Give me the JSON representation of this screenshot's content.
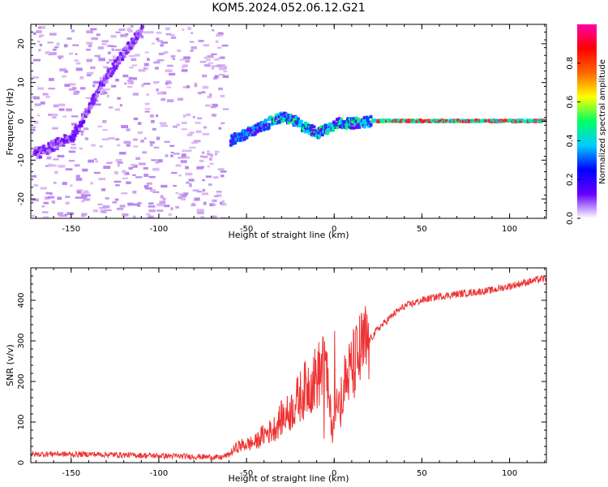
{
  "title": "KOM5.2024.052.06.12.G21",
  "chart_data": [
    {
      "type": "heatmap",
      "xlabel": "Height of straight line (km)",
      "ylabel": "Frequency (Hz)",
      "xlim": [
        -173,
        121
      ],
      "ylim": [
        -25,
        25
      ],
      "xticks": [
        -150,
        -100,
        -50,
        0,
        50,
        100
      ],
      "xtick_labels": [
        "-150",
        "-100",
        "-50",
        "0",
        "50",
        "100"
      ],
      "yticks": [
        -20,
        -10,
        0,
        10,
        20
      ],
      "ytick_labels": [
        "-20",
        "-10",
        "0",
        "10",
        "20"
      ],
      "colorbar": {
        "label": "Normalized spectral amplitude",
        "range": [
          0,
          1
        ],
        "ticks": [
          0.0,
          0.2,
          0.4,
          0.6,
          0.8
        ],
        "tick_labels": [
          "0.0",
          "0.2",
          "0.4",
          "0.6",
          "0.8"
        ],
        "colormap": [
          "#ffffff",
          "#6600ff",
          "#0000ff",
          "#00ccff",
          "#00ff66",
          "#ffff00",
          "#ff6600",
          "#ff0000",
          "#ff00aa"
        ]
      },
      "ridge": {
        "x": [
          -168,
          -160,
          -150,
          -145,
          -140,
          -135,
          -130,
          -125,
          -120,
          -115,
          -110,
          -60,
          -50,
          -40,
          -35,
          -30,
          -25,
          -20,
          -10,
          -5,
          0,
          10,
          20,
          50,
          80,
          100,
          121
        ],
        "y": [
          -8,
          -6,
          -4,
          0,
          4,
          8,
          12,
          15,
          18,
          21,
          24,
          -5,
          -3,
          -1,
          0.5,
          1,
          0.5,
          -1,
          -3,
          -2,
          -0.5,
          -0.5,
          0,
          0,
          0,
          0,
          0
        ]
      }
    },
    {
      "type": "line",
      "xlabel": "Height of straight line (km)",
      "ylabel": "SNR (v/v)",
      "xlim": [
        -173,
        121
      ],
      "ylim": [
        0,
        480
      ],
      "xticks": [
        -150,
        -100,
        -50,
        0,
        50,
        100
      ],
      "xtick_labels": [
        "-150",
        "-100",
        "-50",
        "0",
        "50",
        "100"
      ],
      "yticks": [
        0,
        100,
        200,
        300,
        400
      ],
      "ytick_labels": [
        "0",
        "100",
        "200",
        "300",
        "400"
      ],
      "color": "#ee3333",
      "series": [
        {
          "x": [
            -173,
            -160,
            -150,
            -140,
            -130,
            -120,
            -110,
            -100,
            -90,
            -80,
            -70,
            -65,
            -60,
            -55,
            -50,
            -45,
            -40,
            -35,
            -30,
            -25,
            -20,
            -15,
            -10,
            -5,
            -3,
            -1,
            0,
            5,
            10,
            15,
            20,
            25,
            30,
            35,
            40,
            50,
            60,
            70,
            80,
            90,
            100,
            110,
            121
          ],
          "y": [
            20,
            22,
            20,
            21,
            20,
            19,
            18,
            17,
            16,
            15,
            14,
            12,
            20,
            40,
            45,
            50,
            70,
            80,
            110,
            125,
            160,
            190,
            210,
            240,
            150,
            80,
            120,
            190,
            230,
            270,
            300,
            330,
            350,
            370,
            385,
            400,
            410,
            415,
            420,
            425,
            435,
            445,
            455
          ]
        }
      ]
    }
  ]
}
